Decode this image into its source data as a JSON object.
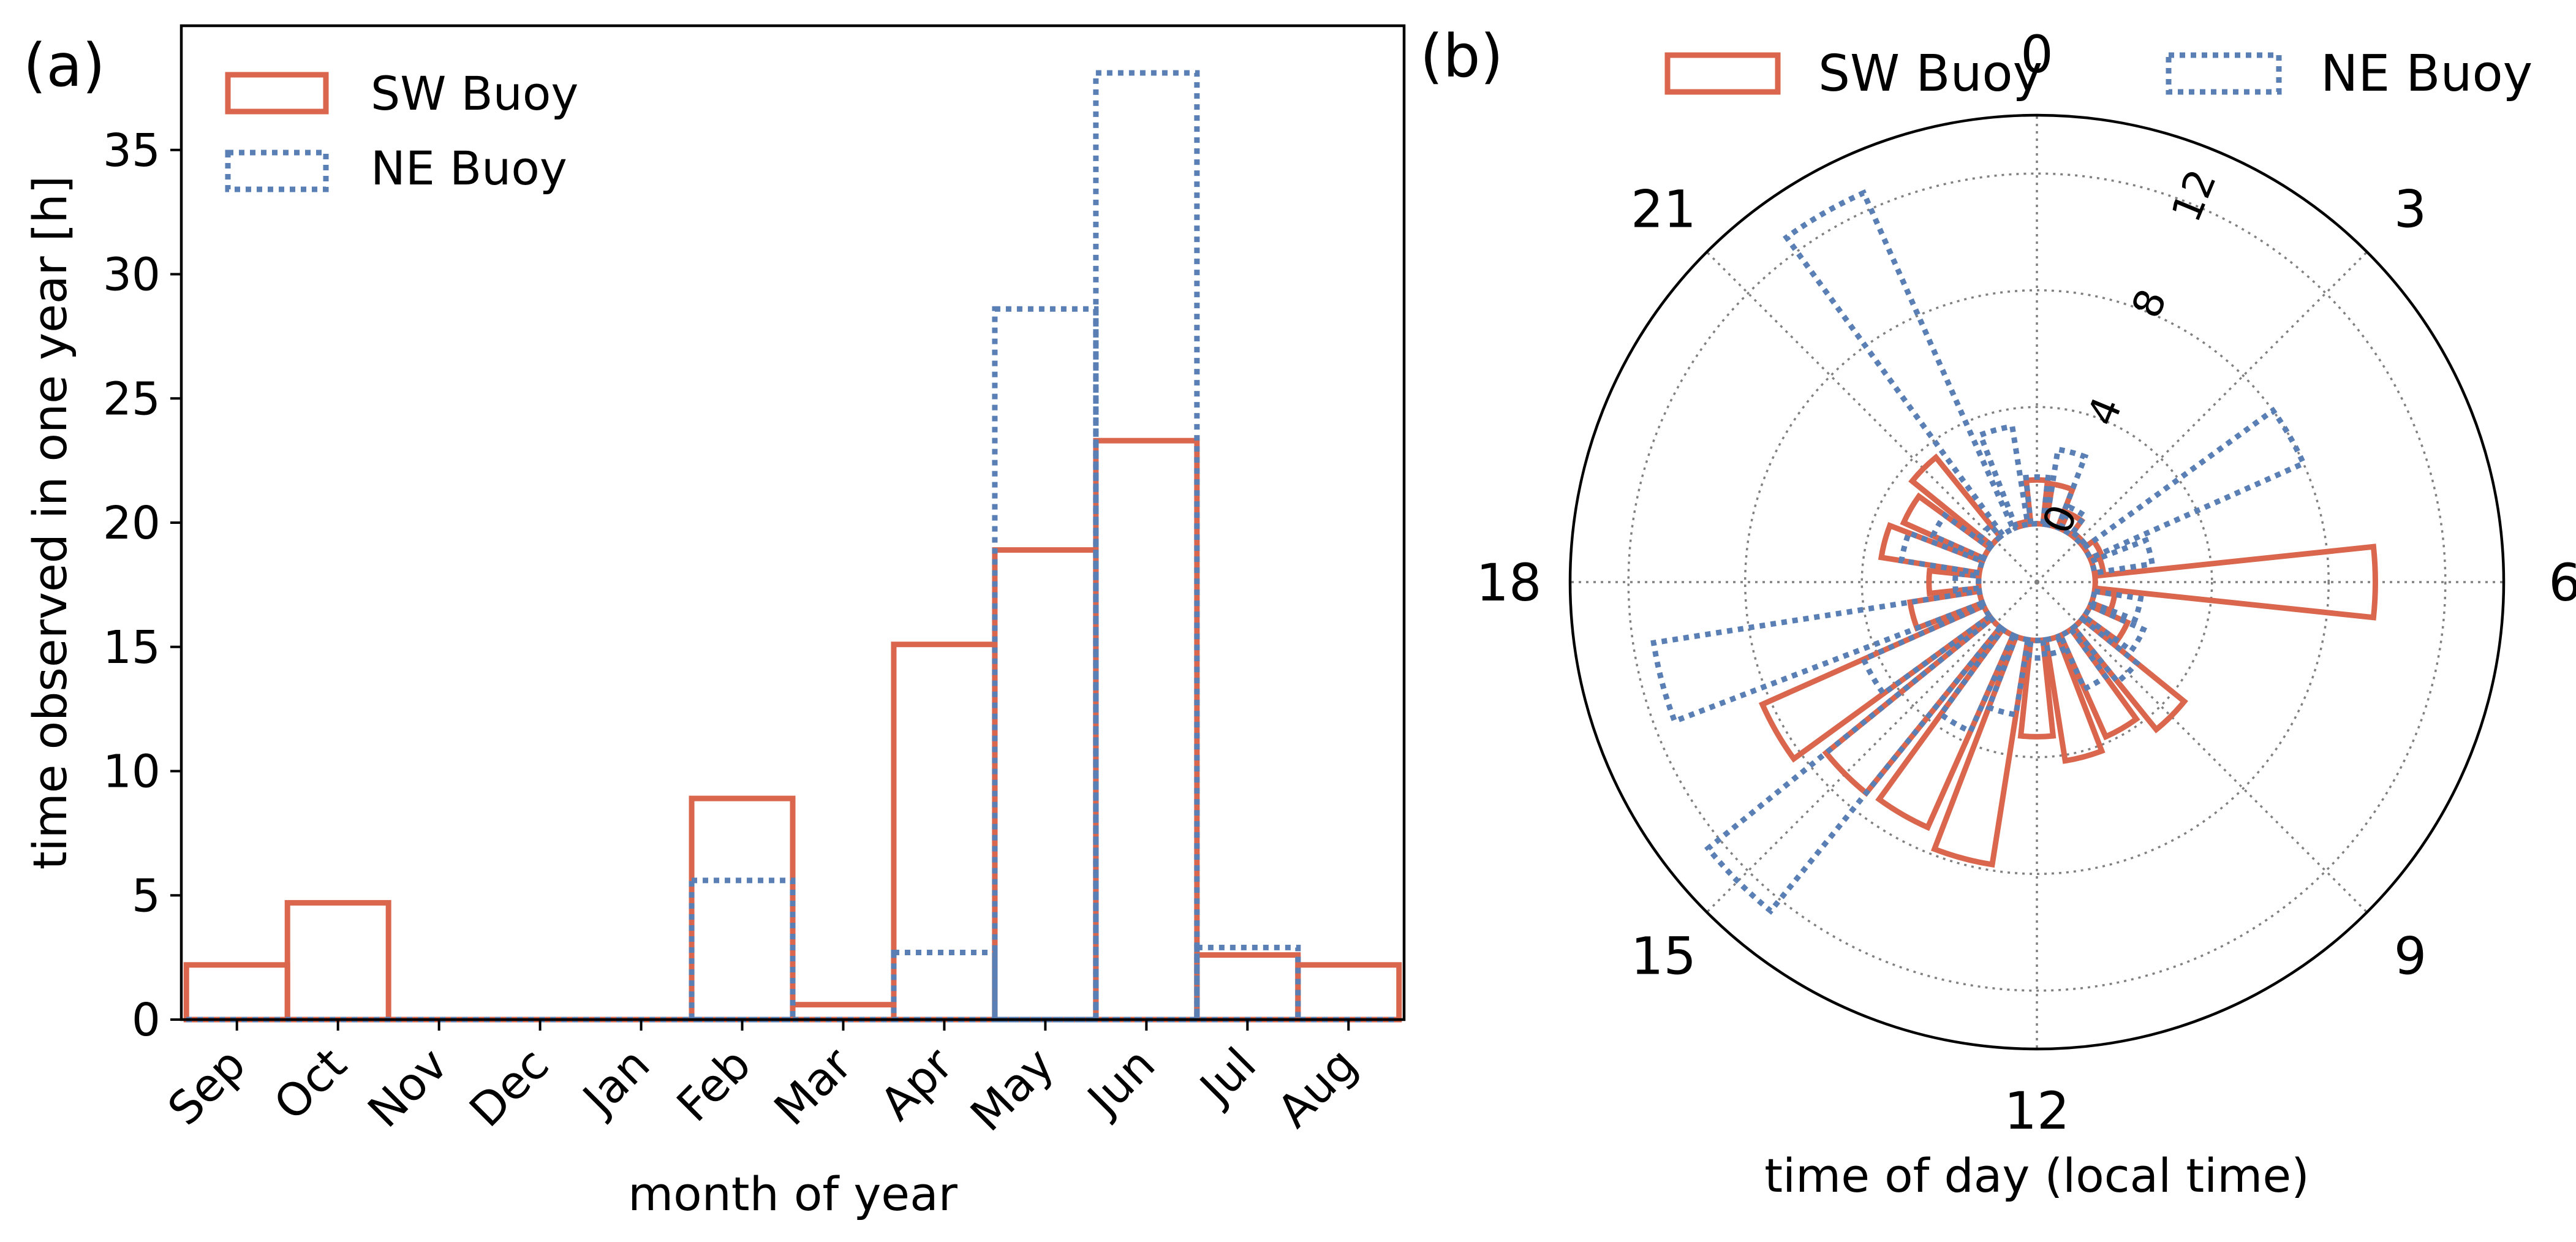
{
  "legend": {
    "sw_label": "SW Buoy",
    "ne_label": "NE Buoy"
  },
  "colors": {
    "sw": "#d9664d",
    "ne": "#5a7fb4",
    "axis": "#000000",
    "grid": "#808080"
  },
  "chart_data": [
    {
      "type": "bar",
      "panel_label": "(a)",
      "xlabel": "month of year",
      "ylabel": "time observed in one year [h]",
      "ylim": [
        0,
        40
      ],
      "yticks": [
        0,
        5,
        10,
        15,
        20,
        25,
        30,
        35
      ],
      "ytick_labels": [
        "0",
        "5",
        "10",
        "15",
        "20",
        "25",
        "30",
        "35"
      ],
      "categories": [
        "Sep",
        "Oct",
        "Nov",
        "Dec",
        "Jan",
        "Feb",
        "Mar",
        "Apr",
        "May",
        "Jun",
        "Jul",
        "Aug"
      ],
      "grid": false,
      "legend_position": "top-left",
      "style": "step",
      "series": [
        {
          "name": "SW Buoy",
          "values": [
            2.2,
            4.7,
            0,
            0,
            0,
            8.9,
            0.6,
            15.1,
            18.9,
            23.3,
            2.6,
            2.2
          ]
        },
        {
          "name": "NE Buoy",
          "values": [
            0,
            0,
            0,
            0,
            0,
            5.6,
            0,
            2.7,
            28.6,
            38.1,
            2.9,
            0
          ]
        }
      ]
    },
    {
      "type": "polar-bar",
      "panel_label": "(b)",
      "xlabel": "time of day (local time)",
      "grid": true,
      "legend_position": "top",
      "direction": "clockwise",
      "zero_at": "top",
      "hour_labels": [
        "0",
        "3",
        "6",
        "9",
        "12",
        "15",
        "18",
        "21"
      ],
      "rticks": [
        0,
        4,
        8,
        12
      ],
      "rtick_labels": [
        "0",
        "4",
        "8",
        "12"
      ],
      "rlim": [
        -2,
        14
      ],
      "hours": [
        0,
        1,
        2,
        3,
        4,
        5,
        6,
        7,
        8,
        9,
        10,
        11,
        12,
        13,
        14,
        15,
        16,
        17,
        18,
        19,
        20,
        21,
        22,
        23
      ],
      "series": [
        {
          "name": "SW Buoy",
          "values": [
            1.5,
            1.4,
            0.6,
            0.1,
            0.4,
            0.3,
            9.6,
            0.7,
            1.4,
            4.5,
            3.8,
            4.2,
            3.3,
            7.8,
            7.2,
            7.3,
            8.3,
            2.4,
            1.7,
            3.4,
            3.0,
            3.5,
            0,
            0.1
          ]
        },
        {
          "name": "NE Buoy",
          "values": [
            1.6,
            2.6,
            0.8,
            0.1,
            8.0,
            2.0,
            0,
            1.6,
            2.0,
            2.4,
            2.0,
            0.5,
            0.6,
            2.6,
            3.6,
            12.5,
            4.5,
            11.3,
            0.8,
            2.7,
            1.9,
            0.5,
            12.6,
            3.4
          ]
        }
      ]
    }
  ]
}
